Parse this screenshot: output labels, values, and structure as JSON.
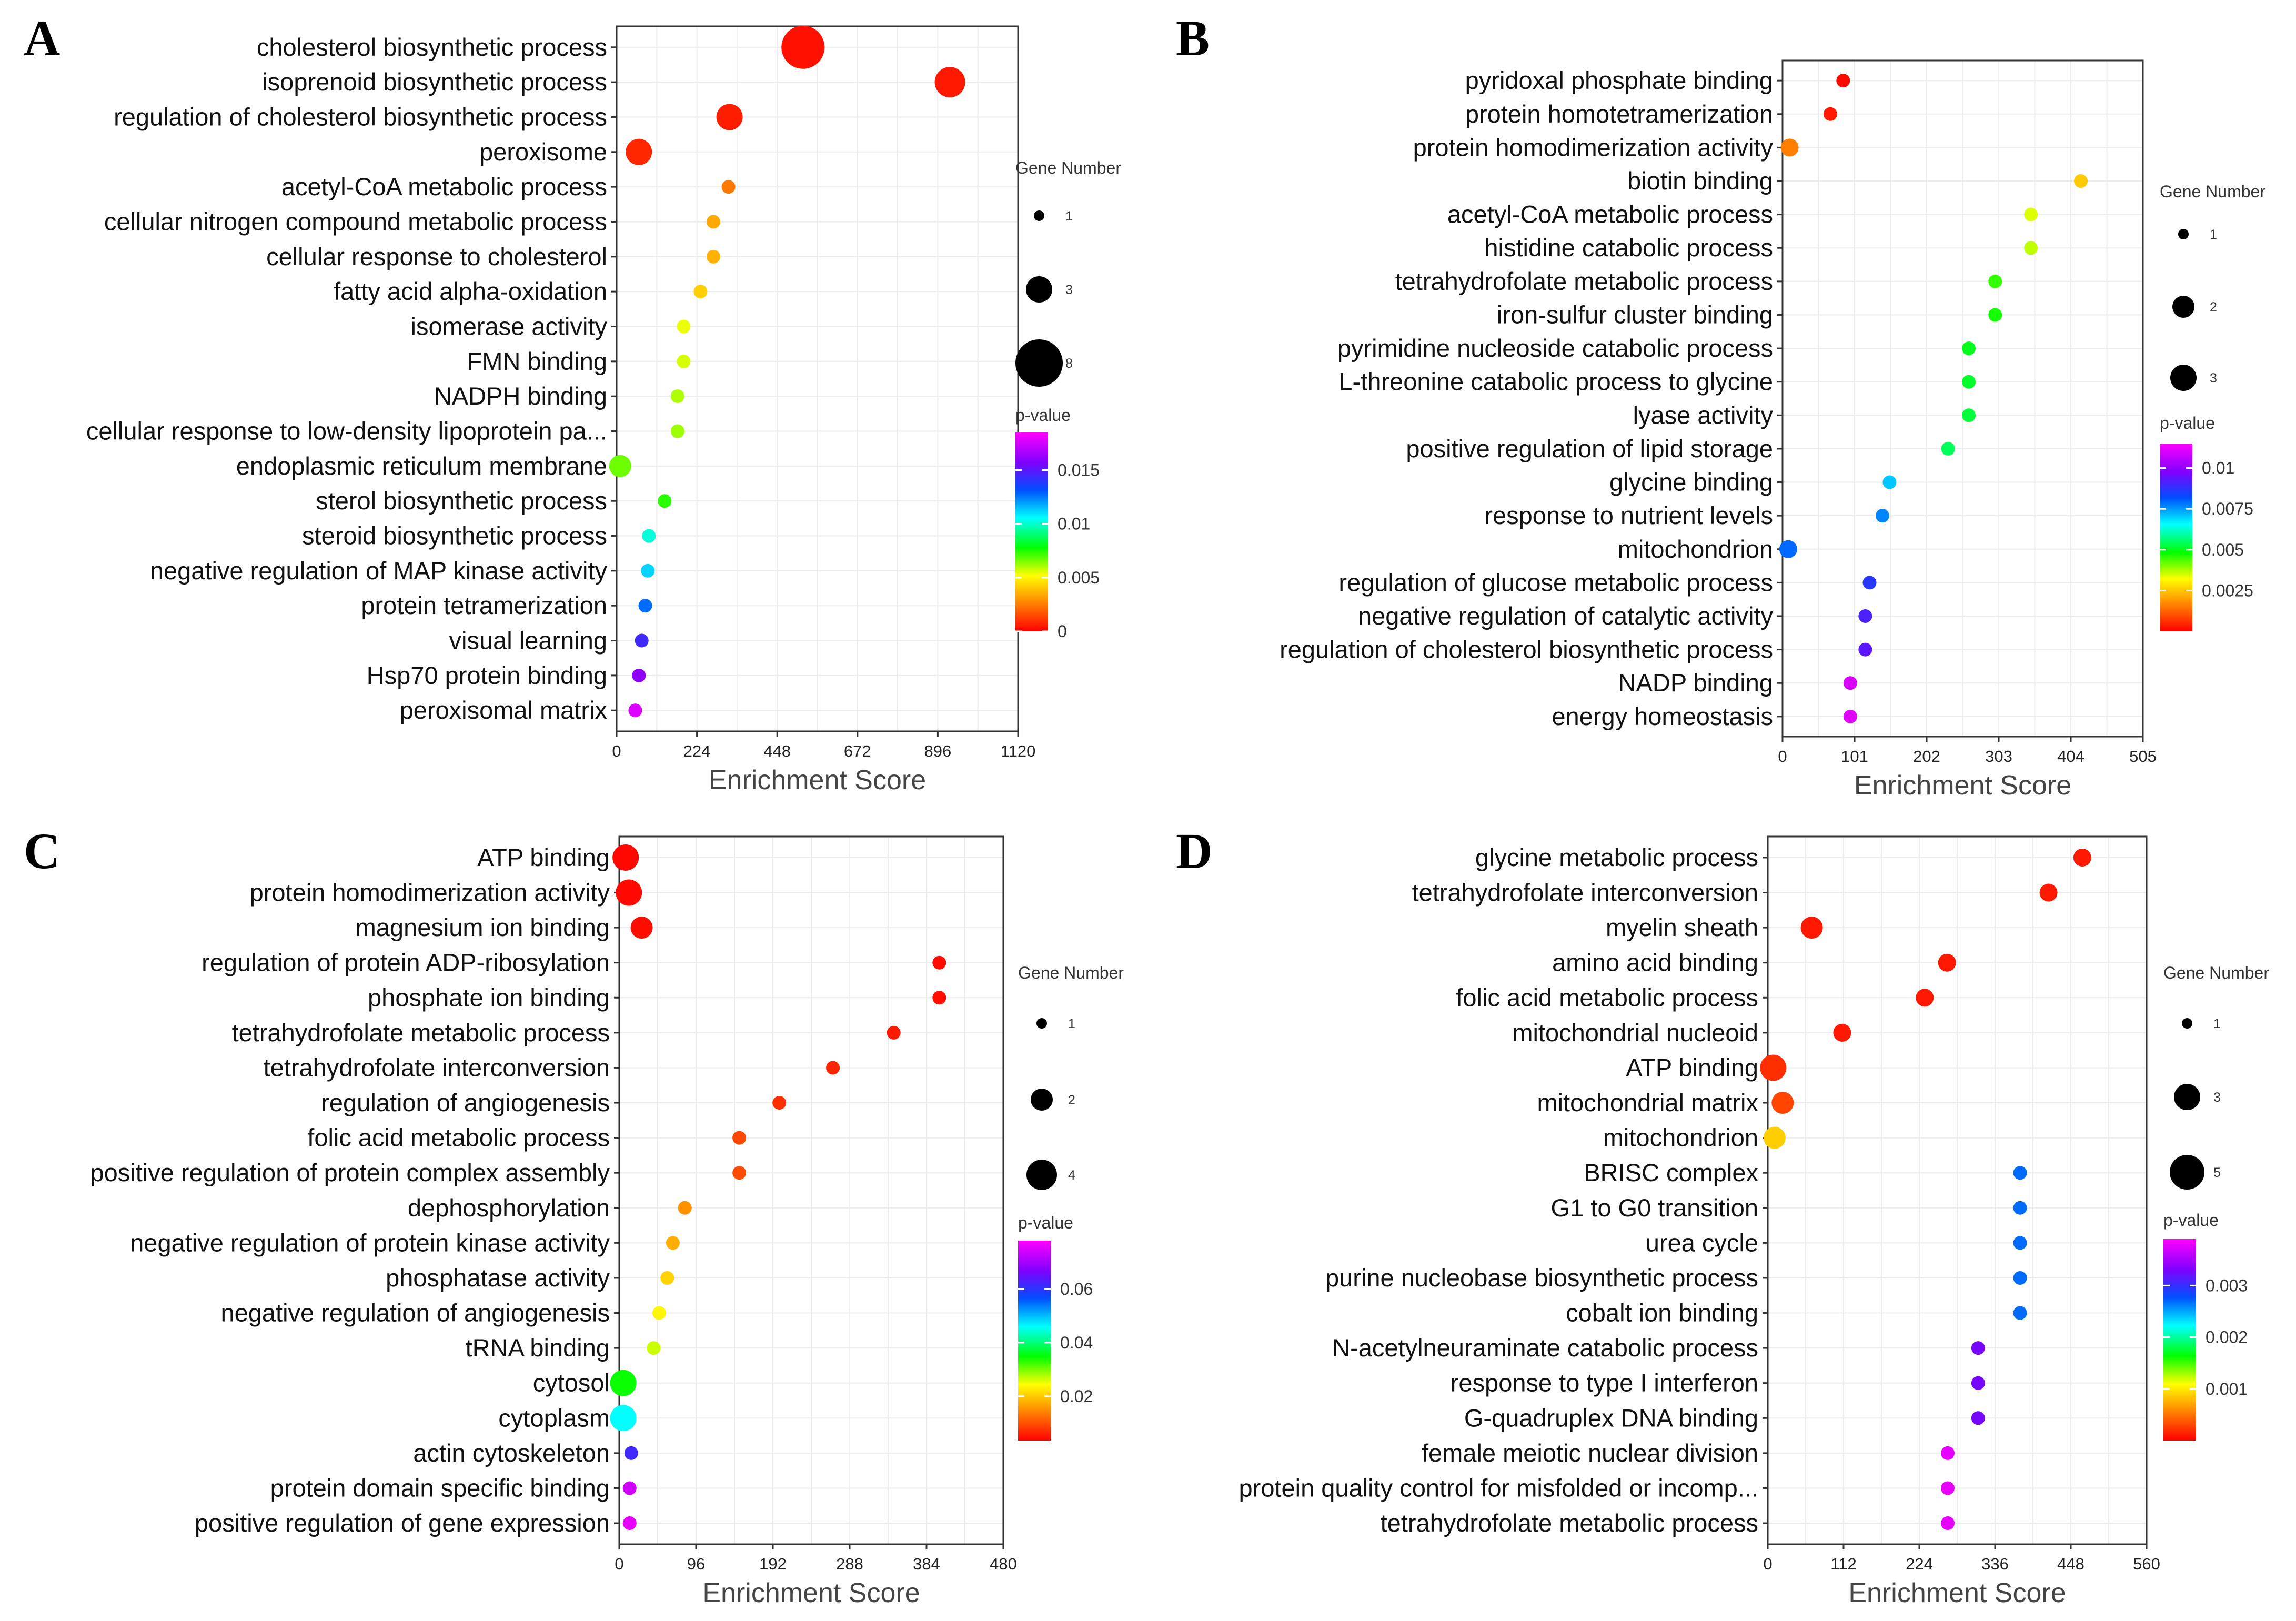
{
  "colors": {
    "background": "#ffffff",
    "gradient": [
      "#ff0000",
      "#ff8000",
      "#ffff00",
      "#00ff00",
      "#00ffff",
      "#0050ff",
      "#8000ff",
      "#ff00ff"
    ]
  },
  "chart_data": [
    {
      "panel_label": "A",
      "type": "scatter",
      "xlabel": "Enrichment Score",
      "xlim": [
        0,
        1120
      ],
      "xticks": [
        0,
        224,
        448,
        672,
        896,
        1120
      ],
      "size_legend_title": "Gene Number",
      "size_legend": [
        1,
        3,
        8
      ],
      "color_legend_title": "p-value",
      "color_range": [
        0,
        0.0185
      ],
      "color_ticks": [
        0,
        0.005,
        0.01,
        0.015
      ],
      "points": [
        {
          "term": "cholesterol biosynthetic process",
          "score": 520,
          "genes": 8,
          "p": 0.0003
        },
        {
          "term": "isoprenoid biosynthetic process",
          "score": 930,
          "genes": 5,
          "p": 0.0005
        },
        {
          "term": "regulation of cholesterol biosynthetic process",
          "score": 315,
          "genes": 4,
          "p": 0.0006
        },
        {
          "term": "peroxisome",
          "score": 62,
          "genes": 4,
          "p": 0.0008
        },
        {
          "term": "acetyl-CoA metabolic process",
          "score": 312,
          "genes": 1,
          "p": 0.0025
        },
        {
          "term": "cellular nitrogen compound metabolic process",
          "score": 270,
          "genes": 1,
          "p": 0.0035
        },
        {
          "term": "cellular response to cholesterol",
          "score": 270,
          "genes": 1,
          "p": 0.0037
        },
        {
          "term": "fatty acid alpha-oxidation",
          "score": 234,
          "genes": 1,
          "p": 0.0043
        },
        {
          "term": "isomerase activity",
          "score": 187,
          "genes": 1,
          "p": 0.0055
        },
        {
          "term": "FMN binding",
          "score": 187,
          "genes": 1,
          "p": 0.0057
        },
        {
          "term": "NADPH binding",
          "score": 170,
          "genes": 1,
          "p": 0.0061
        },
        {
          "term": "cellular response to low-density lipoprotein pa...",
          "score": 170,
          "genes": 1,
          "p": 0.0063
        },
        {
          "term": "endoplasmic reticulum membrane",
          "score": 10,
          "genes": 3,
          "p": 0.0068
        },
        {
          "term": "sterol biosynthetic process",
          "score": 134,
          "genes": 1,
          "p": 0.0075
        },
        {
          "term": "steroid biosynthetic process",
          "score": 90,
          "genes": 1,
          "p": 0.0102
        },
        {
          "term": "negative regulation of MAP kinase activity",
          "score": 87,
          "genes": 1,
          "p": 0.0112
        },
        {
          "term": "protein tetramerization",
          "score": 80,
          "genes": 1,
          "p": 0.0128
        },
        {
          "term": "visual learning",
          "score": 70,
          "genes": 1,
          "p": 0.0145
        },
        {
          "term": "Hsp70 protein binding",
          "score": 62,
          "genes": 1,
          "p": 0.0162
        },
        {
          "term": "peroxisomal matrix",
          "score": 52,
          "genes": 1,
          "p": 0.0178
        }
      ]
    },
    {
      "panel_label": "B",
      "type": "scatter",
      "xlabel": "Enrichment Score",
      "xlim": [
        0,
        505
      ],
      "xticks": [
        0,
        101,
        202,
        303,
        404,
        505
      ],
      "size_legend_title": "Gene Number",
      "size_legend": [
        1,
        2,
        3
      ],
      "color_legend_title": "p-value",
      "color_range": [
        0,
        0.0115
      ],
      "color_ticks": [
        0.0025,
        0.005,
        0.0075,
        0.01
      ],
      "points": [
        {
          "term": "pyridoxal phosphate binding",
          "score": 85,
          "genes": 1,
          "p": 0.0001
        },
        {
          "term": "protein homotetramerization",
          "score": 67,
          "genes": 1,
          "p": 0.0003
        },
        {
          "term": "protein homodimerization activity",
          "score": 10,
          "genes": 2,
          "p": 0.0016
        },
        {
          "term": "biotin binding",
          "score": 418,
          "genes": 1,
          "p": 0.0026
        },
        {
          "term": "acetyl-CoA metabolic process",
          "score": 348,
          "genes": 1,
          "p": 0.0035
        },
        {
          "term": "histidine catabolic process",
          "score": 348,
          "genes": 1,
          "p": 0.0037
        },
        {
          "term": "tetrahydrofolate metabolic process",
          "score": 298,
          "genes": 1,
          "p": 0.0046
        },
        {
          "term": "iron-sulfur cluster binding",
          "score": 298,
          "genes": 1,
          "p": 0.0048
        },
        {
          "term": "pyrimidine nucleoside catabolic process",
          "score": 261,
          "genes": 1,
          "p": 0.0051
        },
        {
          "term": "L-threonine catabolic process to glycine",
          "score": 261,
          "genes": 1,
          "p": 0.0052
        },
        {
          "term": "lyase activity",
          "score": 261,
          "genes": 1,
          "p": 0.0053
        },
        {
          "term": "positive regulation of lipid storage",
          "score": 232,
          "genes": 1,
          "p": 0.0055
        },
        {
          "term": "glycine binding",
          "score": 150,
          "genes": 1,
          "p": 0.0071
        },
        {
          "term": "response to nutrient levels",
          "score": 140,
          "genes": 1,
          "p": 0.0077
        },
        {
          "term": "mitochondrion",
          "score": 8,
          "genes": 2,
          "p": 0.008
        },
        {
          "term": "regulation of glucose metabolic process",
          "score": 122,
          "genes": 1,
          "p": 0.0087
        },
        {
          "term": "negative regulation of catalytic activity",
          "score": 116,
          "genes": 1,
          "p": 0.0092
        },
        {
          "term": "regulation of cholesterol biosynthetic process",
          "score": 116,
          "genes": 1,
          "p": 0.0094
        },
        {
          "term": "NADP binding",
          "score": 95,
          "genes": 1,
          "p": 0.011
        },
        {
          "term": "energy homeostasis",
          "score": 95,
          "genes": 1,
          "p": 0.0111
        }
      ]
    },
    {
      "panel_label": "C",
      "type": "scatter",
      "xlabel": "Enrichment Score",
      "xlim": [
        0,
        480
      ],
      "xticks": [
        0,
        96,
        192,
        288,
        384,
        480
      ],
      "size_legend_title": "Gene Number",
      "size_legend": [
        1,
        2,
        4
      ],
      "color_legend_title": "p-value",
      "color_range": [
        0.0035,
        0.078
      ],
      "color_ticks": [
        0.02,
        0.04,
        0.06
      ],
      "points": [
        {
          "term": "ATP binding",
          "score": 8,
          "genes": 4,
          "p": 0.004
        },
        {
          "term": "protein homodimerization activity",
          "score": 12,
          "genes": 4,
          "p": 0.0042
        },
        {
          "term": "magnesium ion binding",
          "score": 28,
          "genes": 3,
          "p": 0.0045
        },
        {
          "term": "regulation of protein ADP-ribosylation",
          "score": 400,
          "genes": 1,
          "p": 0.0045
        },
        {
          "term": "phosphate ion binding",
          "score": 400,
          "genes": 1,
          "p": 0.0047
        },
        {
          "term": "tetrahydrofolate metabolic process",
          "score": 343,
          "genes": 1,
          "p": 0.0055
        },
        {
          "term": "tetrahydrofolate interconversion",
          "score": 267,
          "genes": 1,
          "p": 0.0065
        },
        {
          "term": "regulation of angiogenesis",
          "score": 200,
          "genes": 1,
          "p": 0.0075
        },
        {
          "term": "folic acid metabolic process",
          "score": 150,
          "genes": 1,
          "p": 0.0095
        },
        {
          "term": "positive regulation of protein complex assembly",
          "score": 150,
          "genes": 1,
          "p": 0.0098
        },
        {
          "term": "dephosphorylation",
          "score": 82,
          "genes": 1,
          "p": 0.0155
        },
        {
          "term": "negative regulation of protein kinase activity",
          "score": 67,
          "genes": 1,
          "p": 0.018
        },
        {
          "term": "phosphatase activity",
          "score": 60,
          "genes": 1,
          "p": 0.021
        },
        {
          "term": "negative regulation of angiogenesis",
          "score": 50,
          "genes": 1,
          "p": 0.024
        },
        {
          "term": "tRNA binding",
          "score": 43,
          "genes": 1,
          "p": 0.027
        },
        {
          "term": "cytosol",
          "score": 5,
          "genes": 4,
          "p": 0.035
        },
        {
          "term": "cytoplasm",
          "score": 5,
          "genes": 4,
          "p": 0.046
        },
        {
          "term": "actin cytoskeleton",
          "score": 15,
          "genes": 1,
          "p": 0.062
        },
        {
          "term": "protein domain specific binding",
          "score": 13,
          "genes": 1,
          "p": 0.074
        },
        {
          "term": "positive regulation of gene expression",
          "score": 13,
          "genes": 1,
          "p": 0.076
        }
      ]
    },
    {
      "panel_label": "D",
      "type": "scatter",
      "xlabel": "Enrichment Score",
      "xlim": [
        0,
        560
      ],
      "xticks": [
        0,
        112,
        224,
        336,
        448,
        560
      ],
      "size_legend_title": "Gene Number",
      "size_legend": [
        1,
        3,
        5
      ],
      "color_legend_title": "p-value",
      "color_range": [
        0,
        0.0039
      ],
      "color_ticks": [
        0.001,
        0.002,
        0.003
      ],
      "points": [
        {
          "term": "glycine metabolic process",
          "score": 465,
          "genes": 2,
          "p": 0.0001
        },
        {
          "term": "tetrahydrofolate interconversion",
          "score": 415,
          "genes": 2,
          "p": 0.0001
        },
        {
          "term": "myelin sheath",
          "score": 65,
          "genes": 3,
          "p": 0.0001
        },
        {
          "term": "amino acid binding",
          "score": 265,
          "genes": 2,
          "p": 0.0001
        },
        {
          "term": "folic acid metabolic process",
          "score": 232,
          "genes": 2,
          "p": 0.0001
        },
        {
          "term": "mitochondrial nucleoid",
          "score": 110,
          "genes": 2,
          "p": 0.0001
        },
        {
          "term": "ATP binding",
          "score": 8,
          "genes": 4,
          "p": 0.0002
        },
        {
          "term": "mitochondrial matrix",
          "score": 22,
          "genes": 3,
          "p": 0.0003
        },
        {
          "term": "mitochondrion",
          "score": 10,
          "genes": 3,
          "p": 0.0009
        },
        {
          "term": "BRISC complex",
          "score": 373,
          "genes": 1,
          "p": 0.0027
        },
        {
          "term": "G1 to G0 transition",
          "score": 373,
          "genes": 1,
          "p": 0.0027
        },
        {
          "term": "urea cycle",
          "score": 373,
          "genes": 1,
          "p": 0.0027
        },
        {
          "term": "purine nucleobase biosynthetic process",
          "score": 373,
          "genes": 1,
          "p": 0.0027
        },
        {
          "term": "cobalt ion binding",
          "score": 373,
          "genes": 1,
          "p": 0.0027
        },
        {
          "term": "N-acetylneuraminate catabolic process",
          "score": 311,
          "genes": 1,
          "p": 0.0033
        },
        {
          "term": "response to type I interferon",
          "score": 311,
          "genes": 1,
          "p": 0.0033
        },
        {
          "term": "G-quadruplex DNA binding",
          "score": 311,
          "genes": 1,
          "p": 0.0033
        },
        {
          "term": "female meiotic nuclear division",
          "score": 266,
          "genes": 1,
          "p": 0.0038
        },
        {
          "term": "protein quality control for misfolded or incomp...",
          "score": 266,
          "genes": 1,
          "p": 0.0038
        },
        {
          "term": "tetrahydrofolate metabolic process",
          "score": 266,
          "genes": 1,
          "p": 0.0038
        }
      ]
    }
  ]
}
